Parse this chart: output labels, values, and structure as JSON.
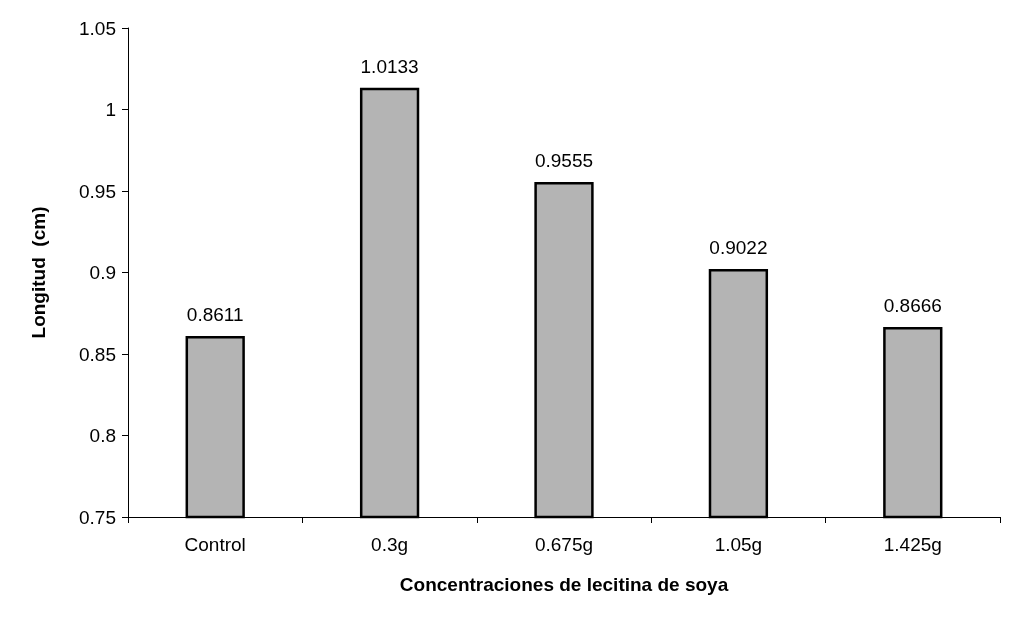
{
  "chart_data": {
    "type": "bar",
    "xlabel": "Concentraciones de lecitina de soya",
    "ylabel": "Longitud  (cm)",
    "categories": [
      "Control",
      "0.3g",
      "0.675g",
      "1.05g",
      "1.425g"
    ],
    "values": [
      0.8611,
      1.0133,
      0.9555,
      0.9022,
      0.8666
    ],
    "color": "#b4b4b4",
    "ylim": [
      0.75,
      1.05
    ],
    "yticks": [
      0.75,
      0.8,
      0.85,
      0.9,
      0.95,
      1,
      1.05
    ],
    "data_labels": true,
    "grid": false
  }
}
